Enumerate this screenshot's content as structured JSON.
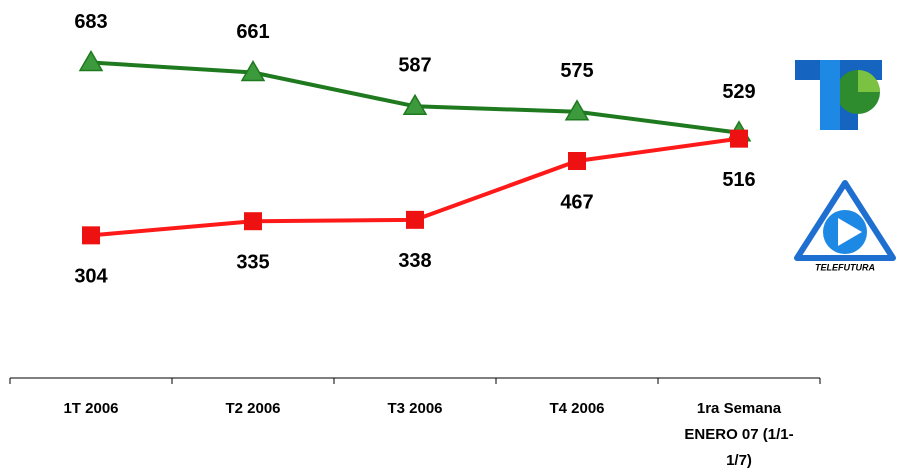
{
  "chart_data": {
    "type": "line",
    "categories": [
      "1T 2006",
      "T2 2006",
      "T3 2006",
      "T4 2006",
      "1ra Semana ENERO 07 (1/1-1/7)"
    ],
    "series": [
      {
        "color": "#1f7a1f",
        "marker": "triangle",
        "marker_color": "#3c9a3c",
        "values": [
          683,
          661,
          587,
          575,
          529
        ]
      },
      {
        "color": "#ff1a1a",
        "marker": "square",
        "marker_color": "#ee1111",
        "values": [
          304,
          335,
          338,
          467,
          516
        ]
      }
    ],
    "ylim": [
      0,
      820
    ],
    "annotations": [
      "TELEFUTURA"
    ]
  }
}
